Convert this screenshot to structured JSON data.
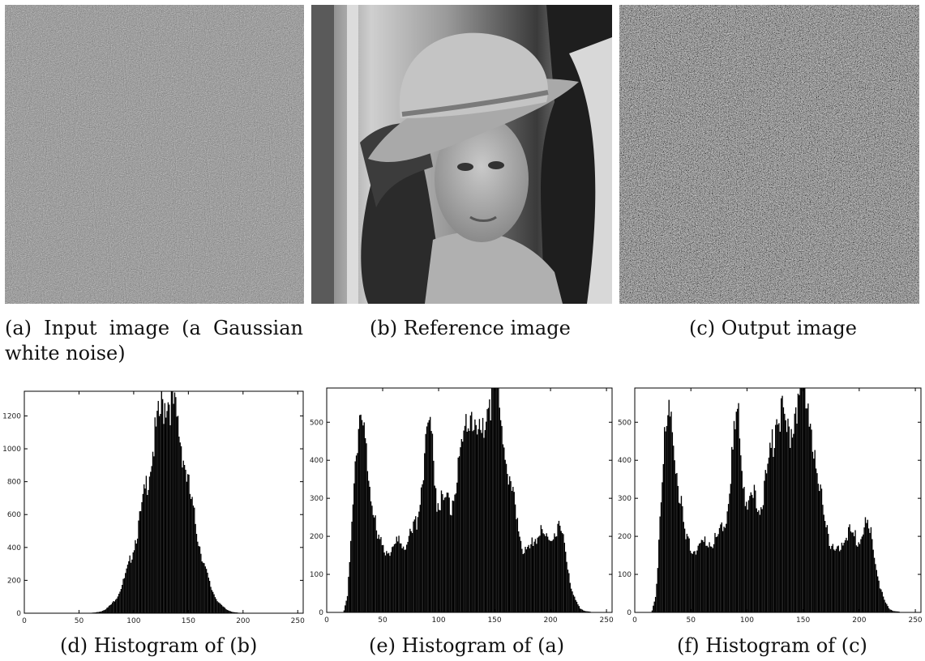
{
  "figure": {
    "panel_a": {
      "caption": "(a) Input image (a Gaussian white noise)",
      "image_label": "Gaussian white noise"
    },
    "panel_b": {
      "caption": "(b) Reference image",
      "image_label": "woman wearing a hat (grayscale photo)"
    },
    "panel_c": {
      "caption": "(c) Output image",
      "image_label": "noise-like output image"
    },
    "panel_d": {
      "caption": "(d) Histogram of (b)"
    },
    "panel_e": {
      "caption": "(e) Histogram of (a)"
    },
    "panel_f": {
      "caption": "(f) Histogram of (c)"
    }
  },
  "chart_data": [
    {
      "type": "bar",
      "id": "hist_d",
      "xlim": [
        0,
        255
      ],
      "ylim": [
        0,
        1350
      ],
      "xticks": [
        "0",
        "50",
        "100",
        "150",
        "200",
        "250"
      ],
      "yticks": [
        "0",
        "200",
        "400",
        "600",
        "800",
        "1000",
        "1200"
      ],
      "ytick_values": [
        0,
        200,
        400,
        600,
        800,
        1000,
        1200
      ],
      "xtick_values": [
        0,
        50,
        100,
        150,
        200,
        250
      ],
      "bins": [
        [
          60,
          2
        ],
        [
          65,
          5
        ],
        [
          70,
          12
        ],
        [
          75,
          30
        ],
        [
          80,
          60
        ],
        [
          85,
          110
        ],
        [
          90,
          190
        ],
        [
          95,
          290
        ],
        [
          100,
          420
        ],
        [
          105,
          560
        ],
        [
          110,
          740
        ],
        [
          115,
          920
        ],
        [
          120,
          1100
        ],
        [
          125,
          1240
        ],
        [
          130,
          1320
        ],
        [
          135,
          1280
        ],
        [
          140,
          1140
        ],
        [
          145,
          960
        ],
        [
          150,
          760
        ],
        [
          155,
          580
        ],
        [
          160,
          410
        ],
        [
          165,
          270
        ],
        [
          170,
          160
        ],
        [
          175,
          90
        ],
        [
          180,
          45
        ],
        [
          185,
          20
        ],
        [
          190,
          8
        ],
        [
          195,
          3
        ],
        [
          200,
          1
        ]
      ]
    },
    {
      "type": "bar",
      "id": "hist_e",
      "xlim": [
        0,
        255
      ],
      "ylim": [
        0,
        590
      ],
      "xticks": [
        "0",
        "50",
        "100",
        "150",
        "200",
        "250"
      ],
      "yticks": [
        "0",
        "100",
        "200",
        "300",
        "400",
        "500"
      ],
      "ytick_values": [
        0,
        100,
        200,
        300,
        400,
        500
      ],
      "xtick_values": [
        0,
        50,
        100,
        150,
        200,
        250
      ],
      "bins": [
        [
          15,
          5
        ],
        [
          18,
          40
        ],
        [
          20,
          130
        ],
        [
          22,
          260
        ],
        [
          25,
          420
        ],
        [
          28,
          480
        ],
        [
          30,
          500
        ],
        [
          33,
          460
        ],
        [
          36,
          400
        ],
        [
          40,
          300
        ],
        [
          45,
          190
        ],
        [
          50,
          170
        ],
        [
          55,
          165
        ],
        [
          60,
          175
        ],
        [
          65,
          190
        ],
        [
          70,
          185
        ],
        [
          75,
          200
        ],
        [
          80,
          240
        ],
        [
          85,
          360
        ],
        [
          88,
          460
        ],
        [
          92,
          510
        ],
        [
          95,
          400
        ],
        [
          98,
          300
        ],
        [
          102,
          290
        ],
        [
          106,
          300
        ],
        [
          110,
          270
        ],
        [
          114,
          320
        ],
        [
          118,
          380
        ],
        [
          122,
          440
        ],
        [
          126,
          520
        ],
        [
          130,
          530
        ],
        [
          134,
          460
        ],
        [
          138,
          470
        ],
        [
          142,
          540
        ],
        [
          146,
          570
        ],
        [
          150,
          590
        ],
        [
          154,
          560
        ],
        [
          158,
          470
        ],
        [
          162,
          330
        ],
        [
          166,
          300
        ],
        [
          170,
          250
        ],
        [
          174,
          180
        ],
        [
          178,
          150
        ],
        [
          182,
          170
        ],
        [
          186,
          200
        ],
        [
          190,
          210
        ],
        [
          194,
          200
        ],
        [
          198,
          190
        ],
        [
          202,
          210
        ],
        [
          206,
          230
        ],
        [
          210,
          200
        ],
        [
          214,
          140
        ],
        [
          218,
          70
        ],
        [
          222,
          30
        ],
        [
          226,
          10
        ],
        [
          230,
          4
        ],
        [
          235,
          2
        ]
      ]
    },
    {
      "type": "bar",
      "id": "hist_f",
      "xlim": [
        0,
        255
      ],
      "ylim": [
        0,
        590
      ],
      "xticks": [
        "0",
        "50",
        "100",
        "150",
        "200",
        "250"
      ],
      "yticks": [
        "0",
        "100",
        "200",
        "300",
        "400",
        "500"
      ],
      "ytick_values": [
        0,
        100,
        200,
        300,
        400,
        500
      ],
      "xtick_values": [
        0,
        50,
        100,
        150,
        200,
        250
      ],
      "bins": [
        [
          15,
          5
        ],
        [
          18,
          40
        ],
        [
          20,
          130
        ],
        [
          22,
          260
        ],
        [
          25,
          420
        ],
        [
          28,
          480
        ],
        [
          30,
          500
        ],
        [
          33,
          460
        ],
        [
          36,
          400
        ],
        [
          40,
          300
        ],
        [
          45,
          190
        ],
        [
          50,
          170
        ],
        [
          55,
          165
        ],
        [
          60,
          175
        ],
        [
          65,
          190
        ],
        [
          70,
          185
        ],
        [
          75,
          200
        ],
        [
          80,
          240
        ],
        [
          85,
          360
        ],
        [
          88,
          460
        ],
        [
          92,
          510
        ],
        [
          95,
          400
        ],
        [
          98,
          300
        ],
        [
          102,
          290
        ],
        [
          106,
          300
        ],
        [
          110,
          270
        ],
        [
          114,
          320
        ],
        [
          118,
          380
        ],
        [
          122,
          440
        ],
        [
          126,
          520
        ],
        [
          130,
          530
        ],
        [
          134,
          460
        ],
        [
          138,
          470
        ],
        [
          142,
          540
        ],
        [
          146,
          570
        ],
        [
          150,
          590
        ],
        [
          154,
          560
        ],
        [
          158,
          470
        ],
        [
          162,
          330
        ],
        [
          166,
          300
        ],
        [
          170,
          250
        ],
        [
          174,
          180
        ],
        [
          178,
          150
        ],
        [
          182,
          170
        ],
        [
          186,
          200
        ],
        [
          190,
          210
        ],
        [
          194,
          200
        ],
        [
          198,
          190
        ],
        [
          202,
          210
        ],
        [
          206,
          230
        ],
        [
          210,
          200
        ],
        [
          214,
          140
        ],
        [
          218,
          70
        ],
        [
          222,
          30
        ],
        [
          226,
          10
        ],
        [
          230,
          4
        ],
        [
          235,
          2
        ]
      ]
    }
  ]
}
